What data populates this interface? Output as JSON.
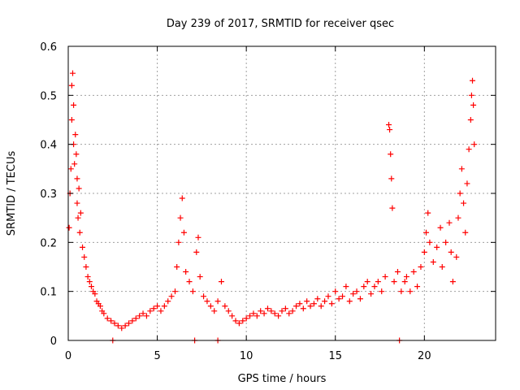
{
  "chart_data": {
    "type": "scatter",
    "title": "Day 239 of 2017, SRMTID for receiver qsec",
    "xlabel": "GPS time / hours",
    "ylabel": "SRMTID / TECUs",
    "xlim": [
      0,
      24
    ],
    "ylim": [
      0,
      0.6
    ],
    "grid": true,
    "legend": "none",
    "x_ticks": [
      "0",
      "5",
      "10",
      "15",
      "20"
    ],
    "y_ticks": [
      "0",
      "0.1",
      "0.2",
      "0.3",
      "0.4",
      "0.5",
      "0.6"
    ],
    "series": [
      {
        "name": "SRMTID",
        "marker": "plus",
        "color": "#ff0000",
        "points": [
          [
            0.05,
            0.23
          ],
          [
            0.1,
            0.3
          ],
          [
            0.15,
            0.35
          ],
          [
            0.2,
            0.45
          ],
          [
            0.2,
            0.52
          ],
          [
            0.25,
            0.545
          ],
          [
            0.3,
            0.48
          ],
          [
            0.3,
            0.4
          ],
          [
            0.35,
            0.36
          ],
          [
            0.4,
            0.42
          ],
          [
            0.45,
            0.38
          ],
          [
            0.5,
            0.33
          ],
          [
            0.5,
            0.28
          ],
          [
            0.55,
            0.25
          ],
          [
            0.6,
            0.31
          ],
          [
            0.65,
            0.22
          ],
          [
            0.7,
            0.26
          ],
          [
            0.8,
            0.19
          ],
          [
            0.9,
            0.17
          ],
          [
            1.0,
            0.15
          ],
          [
            1.1,
            0.13
          ],
          [
            1.2,
            0.12
          ],
          [
            1.3,
            0.11
          ],
          [
            1.4,
            0.1
          ],
          [
            1.5,
            0.095
          ],
          [
            1.6,
            0.08
          ],
          [
            1.7,
            0.075
          ],
          [
            1.8,
            0.07
          ],
          [
            1.9,
            0.06
          ],
          [
            2.0,
            0.055
          ],
          [
            2.2,
            0.045
          ],
          [
            2.4,
            0.04
          ],
          [
            2.6,
            0.035
          ],
          [
            2.8,
            0.03
          ],
          [
            3.0,
            0.025
          ],
          [
            3.2,
            0.03
          ],
          [
            3.4,
            0.035
          ],
          [
            3.6,
            0.04
          ],
          [
            3.8,
            0.045
          ],
          [
            4.0,
            0.05
          ],
          [
            4.2,
            0.055
          ],
          [
            4.4,
            0.05
          ],
          [
            4.6,
            0.06
          ],
          [
            4.8,
            0.065
          ],
          [
            5.0,
            0.07
          ],
          [
            5.2,
            0.06
          ],
          [
            5.4,
            0.07
          ],
          [
            5.6,
            0.08
          ],
          [
            5.8,
            0.09
          ],
          [
            6.0,
            0.1
          ],
          [
            6.1,
            0.15
          ],
          [
            6.2,
            0.2
          ],
          [
            6.3,
            0.25
          ],
          [
            6.4,
            0.29
          ],
          [
            6.5,
            0.22
          ],
          [
            6.6,
            0.14
          ],
          [
            6.8,
            0.12
          ],
          [
            7.0,
            0.1
          ],
          [
            7.2,
            0.18
          ],
          [
            7.3,
            0.21
          ],
          [
            7.4,
            0.13
          ],
          [
            7.6,
            0.09
          ],
          [
            7.8,
            0.08
          ],
          [
            8.0,
            0.07
          ],
          [
            8.2,
            0.06
          ],
          [
            8.4,
            0.08
          ],
          [
            8.6,
            0.12
          ],
          [
            8.8,
            0.07
          ],
          [
            9.0,
            0.06
          ],
          [
            9.2,
            0.05
          ],
          [
            9.4,
            0.04
          ],
          [
            9.6,
            0.035
          ],
          [
            9.8,
            0.04
          ],
          [
            10.0,
            0.045
          ],
          [
            10.2,
            0.05
          ],
          [
            10.4,
            0.055
          ],
          [
            10.6,
            0.05
          ],
          [
            10.8,
            0.06
          ],
          [
            11.0,
            0.055
          ],
          [
            11.2,
            0.065
          ],
          [
            11.4,
            0.06
          ],
          [
            11.6,
            0.055
          ],
          [
            11.8,
            0.05
          ],
          [
            12.0,
            0.06
          ],
          [
            12.2,
            0.065
          ],
          [
            12.4,
            0.055
          ],
          [
            12.6,
            0.06
          ],
          [
            12.8,
            0.07
          ],
          [
            13.0,
            0.075
          ],
          [
            13.2,
            0.065
          ],
          [
            13.4,
            0.08
          ],
          [
            13.6,
            0.07
          ],
          [
            13.8,
            0.075
          ],
          [
            14.0,
            0.085
          ],
          [
            14.2,
            0.07
          ],
          [
            14.4,
            0.08
          ],
          [
            14.6,
            0.09
          ],
          [
            14.8,
            0.075
          ],
          [
            15.0,
            0.1
          ],
          [
            15.2,
            0.085
          ],
          [
            15.4,
            0.09
          ],
          [
            15.6,
            0.11
          ],
          [
            15.8,
            0.08
          ],
          [
            16.0,
            0.095
          ],
          [
            16.2,
            0.1
          ],
          [
            16.4,
            0.085
          ],
          [
            16.6,
            0.11
          ],
          [
            16.8,
            0.12
          ],
          [
            17.0,
            0.095
          ],
          [
            17.2,
            0.11
          ],
          [
            17.4,
            0.12
          ],
          [
            17.6,
            0.1
          ],
          [
            17.8,
            0.13
          ],
          [
            18.0,
            0.44
          ],
          [
            18.05,
            0.43
          ],
          [
            18.1,
            0.38
          ],
          [
            18.15,
            0.33
          ],
          [
            18.2,
            0.27
          ],
          [
            18.3,
            0.12
          ],
          [
            18.5,
            0.14
          ],
          [
            18.7,
            0.1
          ],
          [
            18.9,
            0.12
          ],
          [
            19.0,
            0.13
          ],
          [
            19.2,
            0.1
          ],
          [
            19.4,
            0.14
          ],
          [
            19.6,
            0.11
          ],
          [
            19.8,
            0.15
          ],
          [
            20.0,
            0.18
          ],
          [
            20.1,
            0.22
          ],
          [
            20.2,
            0.26
          ],
          [
            20.3,
            0.2
          ],
          [
            20.5,
            0.16
          ],
          [
            20.7,
            0.19
          ],
          [
            20.9,
            0.23
          ],
          [
            21.0,
            0.15
          ],
          [
            21.2,
            0.2
          ],
          [
            21.4,
            0.24
          ],
          [
            21.5,
            0.18
          ],
          [
            21.6,
            0.12
          ],
          [
            21.8,
            0.17
          ],
          [
            21.9,
            0.25
          ],
          [
            22.0,
            0.3
          ],
          [
            22.1,
            0.35
          ],
          [
            22.2,
            0.28
          ],
          [
            22.3,
            0.22
          ],
          [
            22.4,
            0.32
          ],
          [
            22.5,
            0.39
          ],
          [
            22.6,
            0.45
          ],
          [
            22.65,
            0.5
          ],
          [
            22.7,
            0.53
          ],
          [
            22.75,
            0.48
          ],
          [
            22.8,
            0.4
          ],
          [
            2.5,
            0.0
          ],
          [
            7.1,
            0.0
          ],
          [
            8.4,
            0.0
          ],
          [
            18.6,
            0.0
          ]
        ]
      }
    ]
  }
}
